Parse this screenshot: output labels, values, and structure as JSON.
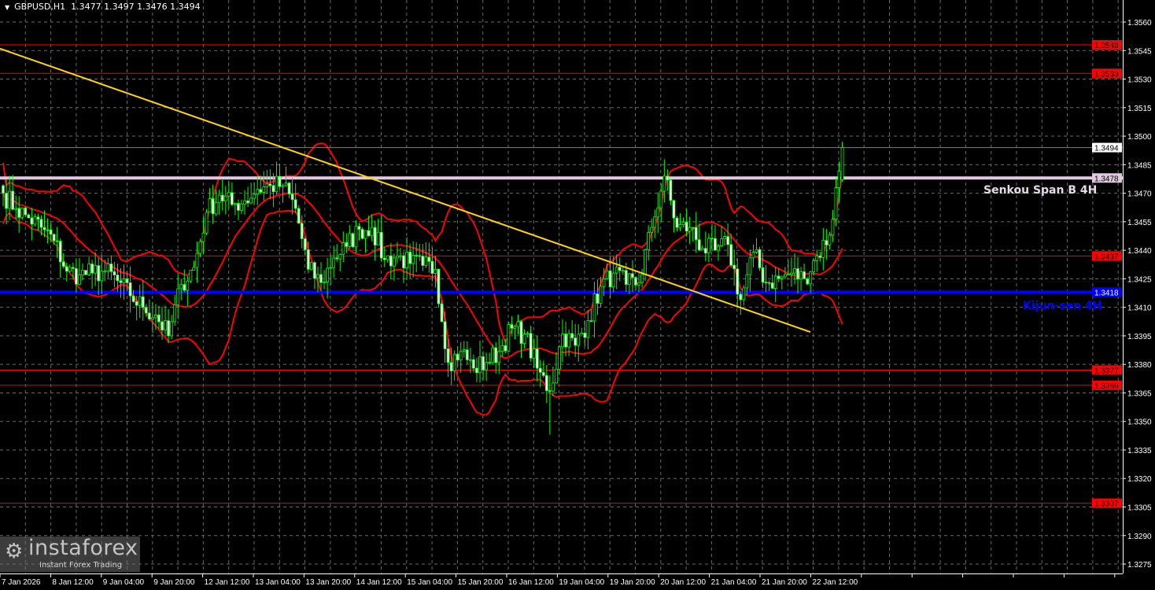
{
  "header": {
    "symbol": "GBPUSD,H1",
    "ohlc": "1.3477 1.3497 1.3476 1.3494"
  },
  "logo": {
    "brand": "instaforex",
    "tagline": "Instant Forex Trading"
  },
  "annotations": {
    "senkou": {
      "text": "Senkou Span B 4H",
      "color": "#e8d8e8"
    },
    "kijun": {
      "text": "Kijun-sen 4H",
      "color": "#0000ff"
    }
  },
  "chart_data": {
    "type": "candlestick",
    "symbol": "GBPUSD",
    "timeframe": "H1",
    "ylim": [
      1.3265,
      1.3572
    ],
    "y_ticks": [
      1.356,
      1.3545,
      1.353,
      1.3515,
      1.35,
      1.3485,
      1.347,
      1.3455,
      1.344,
      1.3425,
      1.341,
      1.3395,
      1.338,
      1.3365,
      1.335,
      1.3335,
      1.332,
      1.3305,
      1.329,
      1.3275
    ],
    "x_tick_labels": [
      "7 Jan 2026",
      "8 Jan 12:00",
      "9 Jan 04:00",
      "9 Jan 20:00",
      "12 Jan 12:00",
      "13 Jan 04:00",
      "13 Jan 20:00",
      "14 Jan 12:00",
      "15 Jan 04:00",
      "15 Jan 20:00",
      "16 Jan 12:00",
      "19 Jan 04:00",
      "19 Jan 20:00",
      "20 Jan 12:00",
      "21 Jan 04:00",
      "21 Jan 20:00",
      "22 Jan 12:00"
    ],
    "approx_close_every_4_bars": [
      1.347,
      1.3462,
      1.3457,
      1.3452,
      1.3445,
      1.3429,
      1.3427,
      1.3428,
      1.3429,
      1.3424,
      1.3416,
      1.341,
      1.3406,
      1.3395,
      1.3422,
      1.3431,
      1.346,
      1.3469,
      1.3464,
      1.3466,
      1.3472,
      1.3474,
      1.3474,
      1.3462,
      1.343,
      1.3423,
      1.3436,
      1.3442,
      1.3451,
      1.3452,
      1.3435,
      1.3437,
      1.3433,
      1.3432,
      1.343,
      1.3381,
      1.3387,
      1.3378,
      1.3381,
      1.3387,
      1.3399,
      1.3396,
      1.3378,
      1.3366,
      1.3396,
      1.339,
      1.3403,
      1.3421,
      1.3428,
      1.3422,
      1.3423,
      1.3452,
      1.3479,
      1.3452,
      1.3452,
      1.3441,
      1.344,
      1.3443,
      1.3414,
      1.3439,
      1.3423,
      1.3425,
      1.3428,
      1.3425,
      1.3437,
      1.3448,
      1.3494
    ],
    "last_bar": {
      "open": 1.3477,
      "high": 1.3497,
      "low": 1.3476,
      "close": 1.3494
    },
    "levels": [
      {
        "price": 1.3548,
        "label": "1.3548",
        "color": "#ff0000",
        "style": "thin"
      },
      {
        "price": 1.3533,
        "label": "1.3533",
        "color": "#ff0000",
        "style": "thin"
      },
      {
        "price": 1.3494,
        "label": "1.3494",
        "color": "#808080",
        "style": "bid"
      },
      {
        "price": 1.3478,
        "label": "1.3478",
        "color": "#e0c8e0",
        "style": "thick"
      },
      {
        "price": 1.3437,
        "label": "1.3437",
        "color": "#ff0000",
        "style": "thin"
      },
      {
        "price": 1.3418,
        "label": "1.3418",
        "color": "#0000ff",
        "style": "thick"
      },
      {
        "price": 1.3377,
        "label": "1.3377",
        "color": "#ff0000",
        "style": "thin"
      },
      {
        "price": 1.3369,
        "label": "1.3369",
        "color": "#ff0000",
        "style": "thin"
      },
      {
        "price": 1.3307,
        "label": "1.3307",
        "color": "#ff0000",
        "style": "thin"
      }
    ],
    "trendline": {
      "from_price": 1.3546,
      "to_price": 1.3397,
      "color": "#ffd700"
    },
    "indicator": {
      "name": "Bollinger Bands",
      "period": 20,
      "deviation": 2,
      "color": "#ff0000"
    },
    "candle_color": "#00ff00",
    "grid": true
  }
}
